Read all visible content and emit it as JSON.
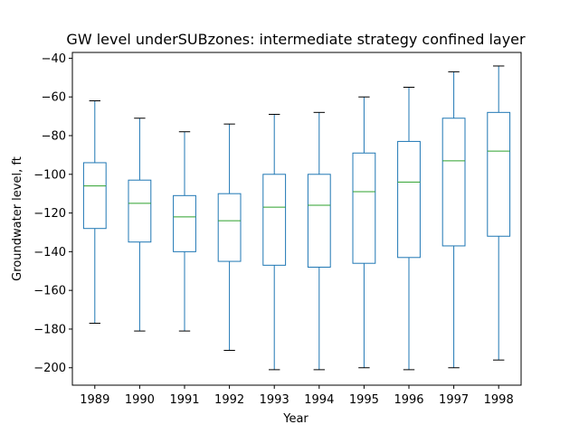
{
  "chart_data": {
    "type": "box",
    "title": "GW level underSUBzones: intermediate strategy confined layer",
    "xlabel": "Year",
    "ylabel": "Groundwater level, ft",
    "ylim": [
      -209,
      -37
    ],
    "yticks": [
      -200,
      -180,
      -160,
      -140,
      -120,
      -100,
      -80,
      -60,
      -40
    ],
    "grid": false,
    "colors": {
      "box": "#1f77b4",
      "median": "#2ca02c",
      "cap": "#000000"
    },
    "categories": [
      "1989",
      "1990",
      "1991",
      "1992",
      "1993",
      "1994",
      "1995",
      "1996",
      "1997",
      "1998"
    ],
    "boxes": [
      {
        "whisker_low": -177,
        "q1": -128,
        "median": -106,
        "q3": -94,
        "whisker_high": -62
      },
      {
        "whisker_low": -181,
        "q1": -135,
        "median": -115,
        "q3": -103,
        "whisker_high": -71
      },
      {
        "whisker_low": -181,
        "q1": -140,
        "median": -122,
        "q3": -111,
        "whisker_high": -78
      },
      {
        "whisker_low": -191,
        "q1": -145,
        "median": -124,
        "q3": -110,
        "whisker_high": -74
      },
      {
        "whisker_low": -201,
        "q1": -147,
        "median": -117,
        "q3": -100,
        "whisker_high": -69
      },
      {
        "whisker_low": -201,
        "q1": -148,
        "median": -116,
        "q3": -100,
        "whisker_high": -68
      },
      {
        "whisker_low": -200,
        "q1": -146,
        "median": -109,
        "q3": -89,
        "whisker_high": -60
      },
      {
        "whisker_low": -201,
        "q1": -143,
        "median": -104,
        "q3": -83,
        "whisker_high": -55
      },
      {
        "whisker_low": -200,
        "q1": -137,
        "median": -93,
        "q3": -71,
        "whisker_high": -47
      },
      {
        "whisker_low": -196,
        "q1": -132,
        "median": -88,
        "q3": -68,
        "whisker_high": -44
      }
    ]
  }
}
